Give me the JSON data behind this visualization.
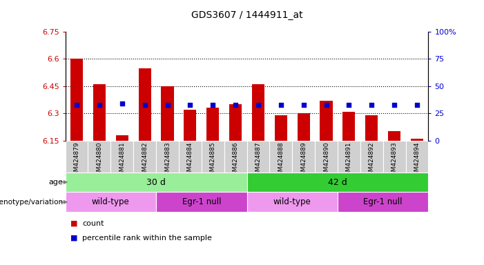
{
  "title": "GDS3607 / 1444911_at",
  "samples": [
    "GSM424879",
    "GSM424880",
    "GSM424881",
    "GSM424882",
    "GSM424883",
    "GSM424884",
    "GSM424885",
    "GSM424886",
    "GSM424887",
    "GSM424888",
    "GSM424889",
    "GSM424890",
    "GSM424891",
    "GSM424892",
    "GSM424893",
    "GSM424894"
  ],
  "count_values": [
    6.6,
    6.46,
    6.18,
    6.55,
    6.45,
    6.32,
    6.33,
    6.35,
    6.46,
    6.29,
    6.3,
    6.37,
    6.31,
    6.29,
    6.2,
    6.16
  ],
  "percentile_values": [
    33,
    33,
    34,
    33,
    33,
    33,
    33,
    33,
    33,
    33,
    33,
    33,
    33,
    33,
    33,
    33
  ],
  "ymin": 6.15,
  "ymax": 6.75,
  "yticks": [
    6.15,
    6.3,
    6.45,
    6.6,
    6.75
  ],
  "ytick_labels": [
    "6.15",
    "6.3",
    "6.45",
    "6.6",
    "6.75"
  ],
  "right_yticks": [
    0,
    25,
    50,
    75,
    100
  ],
  "right_ytick_labels": [
    "0",
    "25",
    "50",
    "75",
    "100%"
  ],
  "bar_color": "#cc0000",
  "dot_color": "#0000cc",
  "age_groups": [
    {
      "label": "30 d",
      "start": 0,
      "end": 8,
      "color": "#99ee99"
    },
    {
      "label": "42 d",
      "start": 8,
      "end": 16,
      "color": "#33cc33"
    }
  ],
  "genotype_groups": [
    {
      "label": "wild-type",
      "start": 0,
      "end": 4,
      "color": "#ee99ee"
    },
    {
      "label": "Egr-1 null",
      "start": 4,
      "end": 8,
      "color": "#cc44cc"
    },
    {
      "label": "wild-type",
      "start": 8,
      "end": 12,
      "color": "#ee99ee"
    },
    {
      "label": "Egr-1 null",
      "start": 12,
      "end": 16,
      "color": "#cc44cc"
    }
  ],
  "legend_count_label": "count",
  "legend_pct_label": "percentile rank within the sample",
  "tick_label_color_left": "#cc0000",
  "tick_label_color_right": "#0000cc",
  "plot_bg_color": "#ffffff",
  "xtick_bg_color": "#d0d0d0",
  "age_label_left": "age",
  "geno_label_left": "genotype/variation"
}
